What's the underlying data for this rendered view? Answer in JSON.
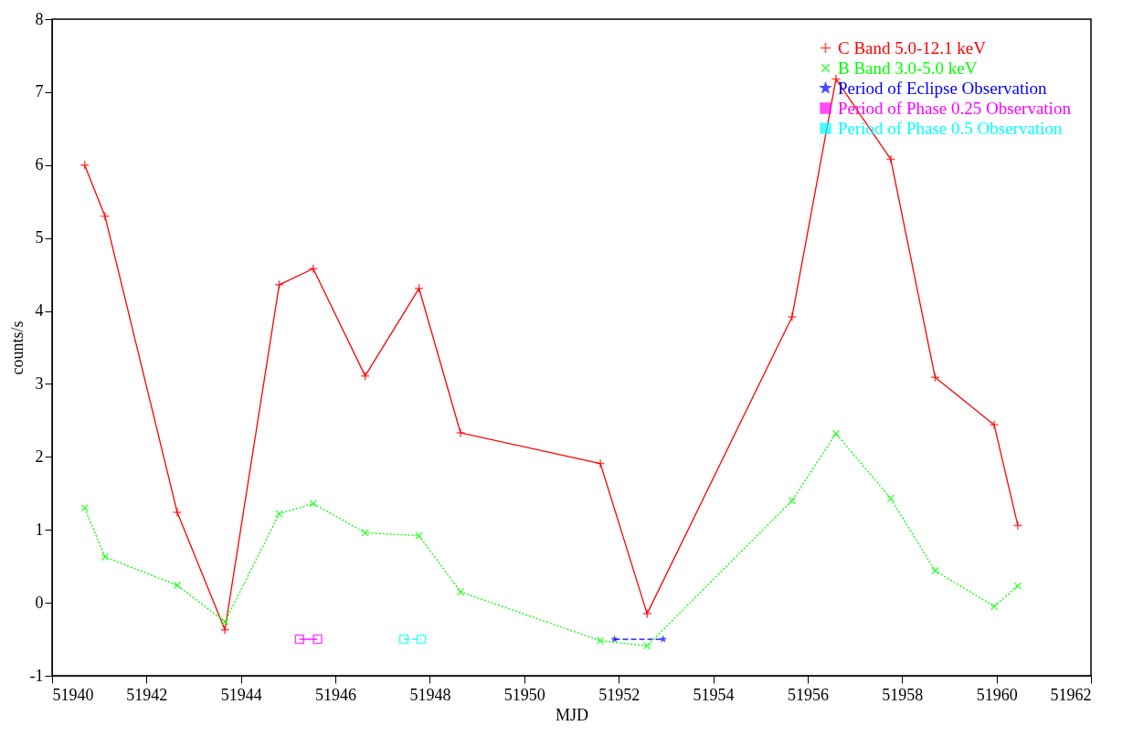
{
  "chart_data": {
    "type": "line",
    "xlabel": "MJD",
    "ylabel": "counts/s",
    "xlim": [
      51940,
      51962
    ],
    "ylim": [
      -1,
      8
    ],
    "xticks": [
      51940,
      51942,
      51944,
      51946,
      51948,
      51950,
      51952,
      51954,
      51956,
      51958,
      51960,
      51962
    ],
    "yticks": [
      {
        "value": -1,
        "label": "-1"
      },
      0,
      1,
      2,
      3,
      4,
      5,
      6,
      7,
      8
    ],
    "legend": "top right",
    "series": [
      {
        "name": "C Band 5.0-12.1 keV",
        "color": "#ff0000",
        "marker": "cross",
        "line_style": "solid",
        "x": [
          51940.69,
          51941.12,
          51942.65,
          51943.66,
          51944.81,
          51945.53,
          51946.63,
          51947.77,
          51948.65,
          51951.61,
          51952.6,
          51955.67,
          51956.6,
          51957.76,
          51958.7,
          51959.95,
          51960.45
        ],
        "values": [
          6.0,
          5.3,
          1.24,
          -0.37,
          4.36,
          4.58,
          3.11,
          4.31,
          2.33,
          1.91,
          -0.15,
          3.92,
          7.18,
          6.08,
          3.09,
          2.44,
          1.06
        ]
      },
      {
        "name": "B Band 3.0-5.0 keV",
        "color": "#00ff00",
        "marker": "x",
        "line_style": "dotted",
        "x": [
          51940.69,
          51941.12,
          51942.65,
          51943.66,
          51944.81,
          51945.53,
          51946.63,
          51947.77,
          51948.65,
          51951.61,
          51952.6,
          51955.67,
          51956.6,
          51957.76,
          51958.7,
          51959.95,
          51960.45
        ],
        "values": [
          1.3,
          0.63,
          0.24,
          -0.26,
          1.22,
          1.36,
          0.96,
          0.92,
          0.15,
          -0.52,
          -0.59,
          1.4,
          2.32,
          1.43,
          0.44,
          -0.05,
          0.23
        ]
      },
      {
        "name": "Period of Eclipse Observation",
        "color": "#0000ff",
        "marker": "star",
        "line_style": "dashed",
        "x": [
          51951.91,
          51952.94
        ],
        "values": [
          -0.5,
          -0.5
        ]
      },
      {
        "name": "Period of Phase 0.25 Observation",
        "color": "#ff00ff",
        "marker": "square",
        "line_style": "solid",
        "x": [
          51945.24,
          51945.62
        ],
        "values": [
          -0.5,
          -0.5
        ]
      },
      {
        "name": "Period of Phase 0.5 Observation",
        "color": "#00ffff",
        "marker": "square",
        "line_style": "dashed",
        "x": [
          51947.45,
          51947.82
        ],
        "values": [
          -0.5,
          -0.5
        ]
      }
    ]
  }
}
